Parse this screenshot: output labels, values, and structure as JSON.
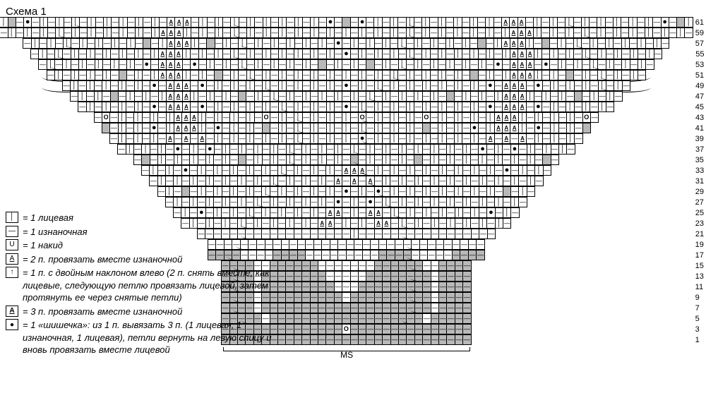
{
  "title": "Схема 1",
  "legend": [
    {
      "sym": "│",
      "text": "= 1 лицевая"
    },
    {
      "sym": "—",
      "text": "= 1 изнаночная"
    },
    {
      "sym": "U",
      "text": "= 1 накид"
    },
    {
      "sym": "A",
      "underline": true,
      "text": "= 2 п. провязать вместе изнаночной"
    },
    {
      "sym": "↑",
      "box": true,
      "text": "= 1 п. с двойным наклоном влево (2 п. снять вместе, как лицевые, следующую петлю провязать лицевой, затем протя­нуть ее через снятые петли)"
    },
    {
      "sym": "A",
      "box": true,
      "underline": true,
      "text": "= 3 п. провязать вместе изнаночной"
    },
    {
      "sym": "●",
      "text": "= 1 «шишечка»: из 1 п. вывязать 3 п. (1 лицевая, 1 изнаночная, 1 лицевая), петли вернуть на левую спицу и вновь провязать вместе лицевой"
    }
  ],
  "ms_label": "MS",
  "rows": [
    {
      "n": 61,
      "cells": "k,g,p,b,p,k,p,k,p,k,p,k,p5,k,p,k,p,k,p,k,p,a,a,a,p,k,p,k,p,k,p,k,p5,k,p,k,p,k,p,k,p,b,p,g,p,b,p,k,p,k,p,k,p,k,p5,k,p,k,p,k,p,k,p,a,a,a,p,k,p,k,p,k,p,k,p5,k,p,k,p,k,p,k,p,b,p,g,k"
    },
    {
      "n": 59,
      "cells": "p,k,p,k,p,k,p,k,p,k,p5,k,p,k,p,k,p,k,p,k,a,a,a,k,p,k,p,k,p,k,p,k,p5,k,p,k,p,k,p,k,p,k,p,k,p,k,p,k,p,k,p,k,p,k,p5,k,p,k,p,k,p,k,p,k,a,a,a,k,p,k,p,k,p,k,p,k,p5,k,p,k,p,k,p,k,p,k,p"
    },
    {
      "n": 57,
      "cells": "p,k,p,k,p,k,p,k,p5,k,p,k,p,k,p,g,p,k,a,a,a,k,p,g,p,k,p,k,p,k,p5,k,p,k,p,k,p,k,p,b,p,k,p,k,p,k,p,k,p,k,p5,k,p,k,p,k,p,g,p,k,a,a,a,k,p,g,p,k,p,k,p,k,p5,k,p,k,p,k,p,k,p"
    },
    {
      "n": 55,
      "cells": "p,k,p,k,p,k,p5,k,p,k,p,k,p,k,p,k,a,a,a,k,p,k,p,k,p,k,p,k,p5,k,p,k,p,k,p,k,p,k,p,b,p,k,p,k,p,k,p,k,p,k,p5,k,p,k,p,k,p,k,p,k,a,a,a,k,p,k,p,k,p,k,p,k,p5,k,p,k,p,k,p"
    },
    {
      "n": 53,
      "cells": "p,k,p,k,p5,k,p,k,p,k,p,k,p,b,p,a,a,a,p,b,p,k,p,k,p,k,p,k,p5,k,p,k,p,k,p,g,p,k,p,k,p,g,p,k,p,k,p,k,p5,k,p,k,p,k,p,k,p,b,p,a,a,a,p,b,p,k,p,k,p,k,p,k,p5,k,p,k,p"
    },
    {
      "n": 51,
      "cells": "p,k,p5,k,p,k,p,k,p,g,p,k,p,k,a,a,a,k,p,k,p,g,p,k,p,k,p,k,p5,k,p,k,p,k,p,k,p,k,p,k,p,k,p,k,p,k,p5,k,p,k,p,k,p,g,p,k,p,k,a,a,a,k,p,k,p,g,p,k,p,k,p,k,p5,k,p"
    },
    {
      "n": 49,
      "cells": "p5,k,p,k,p,k,p,k,p,k,p,b,p,a,a,a,p,b,p,k,p,k,p,k,p,k,p,k,p5,k,p,k,p,k,p,b,p,k,p,k,p,k,p5,k,p,k,p,k,p,k,p,k,p,b,p,a,a,a,p,b,p,k,p,k,p,k,p,k,p,k,p5"
    },
    {
      "n": 47,
      "cells": "p,k,p,k,p,g,p,k,p,k,p,k,a,a,a,k,p,k,p,k,p,g,p,k,p,k,p,k,p5,k,p,k,p,k,p,k,p,k,p,k,p5,k,p,k,p,k,p,g,p,k,p,k,p,k,a,a,a,k,p,k,p,k,p,g,p,k,p,k,p"
    },
    {
      "n": 45,
      "cells": "p,k,p,k,p,k,p,k,p,b,p,a,a,a,p,b,p,k,p,k,p,k,p,k,p,k,p,k,p5,k,p,k,p,b,p,k,p,k,p5,k,p,k,p,k,p,k,p,k,p,k,p,b,p,a,a,a,p,b,p,k,p,k,p,k,p,k,p"
    },
    {
      "n": 43,
      "cells": "p,o,p,k,p,k,p,k,p,k,a,a,a,k,p,k,p,k,p,k,p,o,p,k,p,k,p,k,p5,k,p,k,p,o,p,k,p5,k,p,k,p,o,p,k,p,k,p,k,p,k,a,a,a,k,p,k,p,k,p,k,p,o,p"
    },
    {
      "n": 41,
      "cells": "g,p,k,p,k,p,b,p,k,a,a,a,k,p,b,p,k,p,k,p,g,p,k,p,k,p,k,p5,k,p,k,p,k,p,k,p5,k,p,k,p,g,p,k,p,k,p,b,p,k,a,a,a,k,p,b,p,k,p,k,p,g"
    },
    {
      "n": 39,
      "cells": "p,k,p,k,p,k,p,a,p,a,p,a,p,k,p,k,p,k,p,k,p,k,p,k,p,k,p5,k,p,k,p,b,p,k,p5,k,p,k,p,k,p,k,p,k,p,k,p,a,p,a,p,a,p,k,p,k,p,k,p"
    },
    {
      "n": 37,
      "cells": "p,k,p,k,p,k,p,b,p,k,p,b,p,k,p,k,p,k,p,k,p,k,p,k,p5,k,p,k,p,k,p,k,p5,k,p,k,p,k,p,k,p,k,p,k,p,b,p,k,p,b,p,k,p,k,p,k,p"
    },
    {
      "n": 35,
      "cells": "p,g,p,k,p,k,p,k,p,k,p,k,p,g,p,k,p,k,p,k,p,k,p5,k,p,k,p,g,p,k,p5,k,p,k,p,g,p,k,p,k,p,k,p,k,p,k,p,k,p,k,p,g,p"
    },
    {
      "n": 33,
      "cells": "p,k,p,k,p,b,p,k,p,k,p,k,p,k,p,k,p,k,p,k,p5,k,p,k,p,a,a,a,p,k,p5,k,p,k,p,k,p,k,p,k,p,k,p,k,p,b,p,k,p,k,p"
    },
    {
      "n": 31,
      "cells": "p,k,p,k,p,k,p,k,p,k,p,k,p,k,p,k,p,k,p5,k,p,k,p,a,p,a,p,a,p,k,p5,k,p,k,p,k,p,k,p,k,p,k,p,k,p,k,p,k,p"
    },
    {
      "n": 29,
      "cells": "p,k,p,g,p,k,p,k,p,k,p,k,p,k,p,k,p5,k,p,k,p,k,p,b,p,k,p,b,p,k,p5,k,p,k,p,k,p,k,p,k,p,k,p,g,p,k,p"
    },
    {
      "n": 27,
      "cells": "p,k,p,k,p,k,p,k,p,k,p,k,p,k,p5,k,p,k,p,k,p,b,p,k,p,b,p,k,p,k,p5,k,p,k,p,k,p,k,p,k,p,k,p,k,p"
    },
    {
      "n": 25,
      "cells": "p,k,p,b,p,k,p,k,p,k,p,k,p5,k,p,k,p,k,p,a,a,p,k,p,a,a,p,k,p,k,p5,k,p,k,p,k,p,k,p,b,p,k,p"
    },
    {
      "n": 23,
      "cells": "p,k,p,k,p,k,p,k,p,k,p5,k,p,k,p,k,p,a,a,p,k,p,k,p,a,a,p,k,p,k,p5,k,p,k,p,k,p,k,p,k,p"
    },
    {
      "n": 21,
      "cells": "p,p,p,p,p,p,p,p,p5,p,p,p,p,p,p,p,p,p,p,k,p,p,p,p,p,p,p,p,p5,p,p,p,p,p,p,p,p"
    },
    {
      "n": 19,
      "cells": "p,p,p,p,p,p,p5,p,p,p,p,p,p,p,p,p,p,p,p,p,p,p,p,p,p,p,p,p5,p,p,p,p,p,p"
    },
    {
      "n": 17,
      "cells": "gp,gp,gp,gp,p,p5,p,p,gp,gp,gp,gp,p,p,p,p,p,p,p,p,p,gp,gp,gp,gp,p,p,p5,p,p,gp,gp,gp,gp"
    },
    {
      "n": 15,
      "cells": "gp,gp,gp,gp,p5,p,gp,gp,gp,gp,gp,gp,p,p,p,p,p,p,p,gp,gp,gp,gp,gp,gp,p,p5,gp,gp,gp,gp"
    },
    {
      "n": 13,
      "cells": "gp,gp,gp,gp,p5,gp,gp,gp,gp,gp,gp,gp,gp,p,p,p,p,p,gp,gp,gp,gp,gp,gp,gp,gp,p5,gp,gp,gp,gp"
    },
    {
      "n": 11,
      "cells": "gp,gp,gp,gp,p5,gp,gp,gp,gp,gp,gp,gp,gp,gp,p,p,p,gp,gp,gp,gp,gp,gp,gp,gp,gp,p5,gp,gp,gp,gp"
    },
    {
      "n": 9,
      "cells": "gp,gp,gp,gp,p5,gp,gp,gp,gp,gp,gp,gp,gp,gp,gp,p,gp,gp,gp,gp,gp,gp,gp,gp,gp,gp,p5,gp,gp,gp,gp"
    },
    {
      "n": 7,
      "cells": "gp,gp,gp,gp,p5,gp,gp,gp,gp,gp,gp,gp,gp,gp,gp,gp,gp,gp,gp,gp,gp,gp,gp,gp,gp,gp,p5,gp,gp,gp,gp"
    },
    {
      "n": 5,
      "cells": "gp,gp,gp,gp,gp,p5,gp,gp,gp,gp,gp,gp,gp,gp,gp,gp,gp,gp,gp,gp,gp,gp,gp,gp,gp,p5,gp,gp,gp,gp,gp"
    },
    {
      "n": 3,
      "cells": "gp,gp,gp,gp,gp,gp,gp,gp,gp,gp,gp,gp,gp,gp,gp,o,gp,gp,gp,gp,gp,gp,gp,gp,gp,gp,gp,gp,gp,gp,gp"
    },
    {
      "n": 1,
      "cells": "gp,gp,gp,gp,gp,gp,gp,gp,gp,gp,gp,gp,gp,gp,gp,gp,gp,gp,gp,gp,gp,gp,gp,gp,gp,gp,gp,gp,gp,gp,gp"
    }
  ],
  "grid": {
    "cell_size": 15,
    "border_color": "#000000",
    "fill_color": "#b8b8b8",
    "bg_color": "#ffffff"
  },
  "ms": {
    "left_offset_cells": 0,
    "width_cells": 31
  }
}
